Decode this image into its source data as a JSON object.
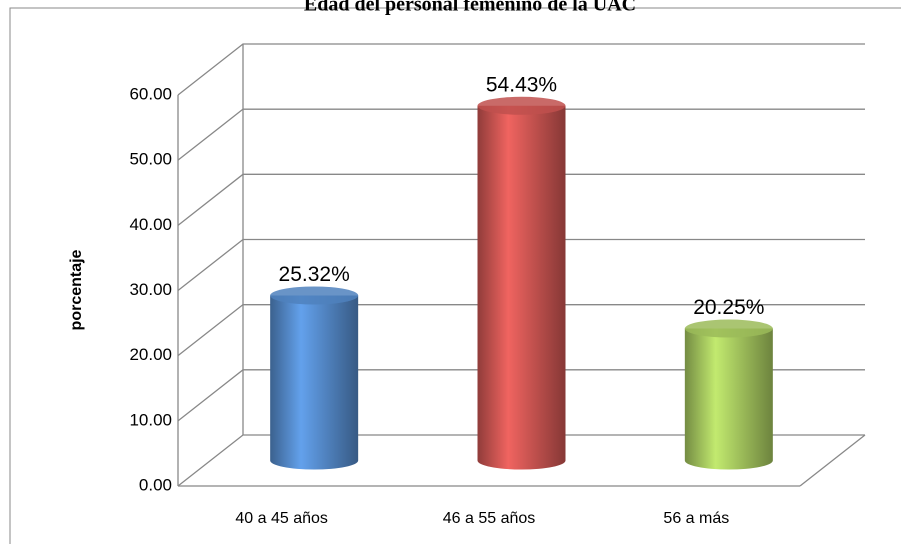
{
  "chart_data": {
    "type": "bar3d",
    "title": "Edad del personal femenino de la UAC",
    "y_label": "porcentaje",
    "categories": [
      "40 a 45 años",
      "46 a 55 años",
      "56 a más"
    ],
    "values": [
      25.32,
      54.43,
      20.25
    ],
    "value_labels": [
      "25.32%",
      "54.43%",
      "20.25%"
    ],
    "colors": [
      "#4f81bd",
      "#c0504d",
      "#9bbb59"
    ],
    "ylim": [
      0,
      60
    ],
    "yticks": [
      {
        "value": 0,
        "label": "0.00"
      },
      {
        "value": 10,
        "label": "10.00"
      },
      {
        "value": 20,
        "label": "20.00"
      },
      {
        "value": 30,
        "label": "30.00"
      },
      {
        "value": 40,
        "label": "40.00"
      },
      {
        "value": 50,
        "label": "50.00"
      },
      {
        "value": 60,
        "label": "60.00"
      }
    ],
    "grid": true
  }
}
